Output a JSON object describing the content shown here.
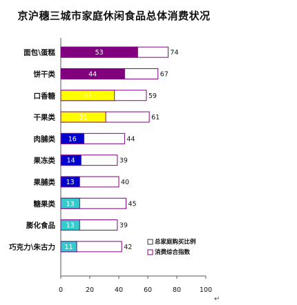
{
  "chart_data": {
    "type": "bar",
    "title": "京沪穗三城市家庭休闲食品总体消费状况",
    "categories": [
      "面包\\蛋糕",
      "饼干类",
      "口香糖",
      "干果类",
      "肉脯类",
      "果冻类",
      "果脯类",
      "糖果类",
      "膨化食品",
      "巧克力\\朱古力"
    ],
    "series": [
      {
        "name": "总家庭购买比例",
        "color": "#800080",
        "values": [
          53,
          44,
          37,
          31,
          16,
          14,
          13,
          13,
          13,
          11
        ]
      },
      {
        "name": "消费综合指数",
        "color": "#ffffff",
        "values": [
          74,
          67,
          59,
          61,
          44,
          39,
          40,
          45,
          39,
          42
        ]
      }
    ],
    "bar_colors": [
      "#800080",
      "#800080",
      "#ffff00",
      "#ffff00",
      "#0000cc",
      "#0000cc",
      "#0000cc",
      "#33cccc",
      "#33cccc",
      "#33cccc"
    ],
    "label_colors": [
      "#ffffff",
      "#ffffff",
      "#333333",
      "#333333",
      "#ffffff",
      "#ffffff",
      "#ffffff",
      "#333333",
      "#333333",
      "#333333"
    ],
    "outline_color": "#800080",
    "xlim": [
      0,
      100
    ],
    "xticks": [
      0,
      20,
      40,
      60,
      80,
      100
    ],
    "grid": false,
    "legend": "bottom-right",
    "corner_mark": "↵"
  }
}
